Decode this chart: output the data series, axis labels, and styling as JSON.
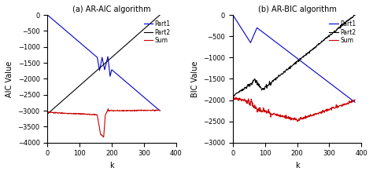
{
  "left": {
    "title": "(a) AR-AIC algorithm",
    "ylabel": "AIC Value",
    "xlabel": "k",
    "xlim": [
      0,
      400
    ],
    "ylim": [
      -4000,
      0
    ],
    "yticks": [
      0,
      -500,
      -1000,
      -1500,
      -2000,
      -2500,
      -3000,
      -3500,
      -4000
    ],
    "xticks": [
      0,
      100,
      200,
      300,
      400
    ]
  },
  "right": {
    "title": "(b) AR-BIC algorithm",
    "ylabel": "BIC Value",
    "xlabel": "k",
    "xlim": [
      0,
      400
    ],
    "ylim": [
      -3000,
      0
    ],
    "yticks": [
      0,
      -500,
      -1000,
      -1500,
      -2000,
      -2500,
      -3000
    ],
    "xticks": [
      0,
      100,
      200,
      300,
      400
    ]
  },
  "legend_labels": [
    "Part1",
    "Part2",
    "Sum"
  ],
  "colors": {
    "part1": "#0000CC",
    "part2": "#000000",
    "sum": "#CC0000"
  }
}
